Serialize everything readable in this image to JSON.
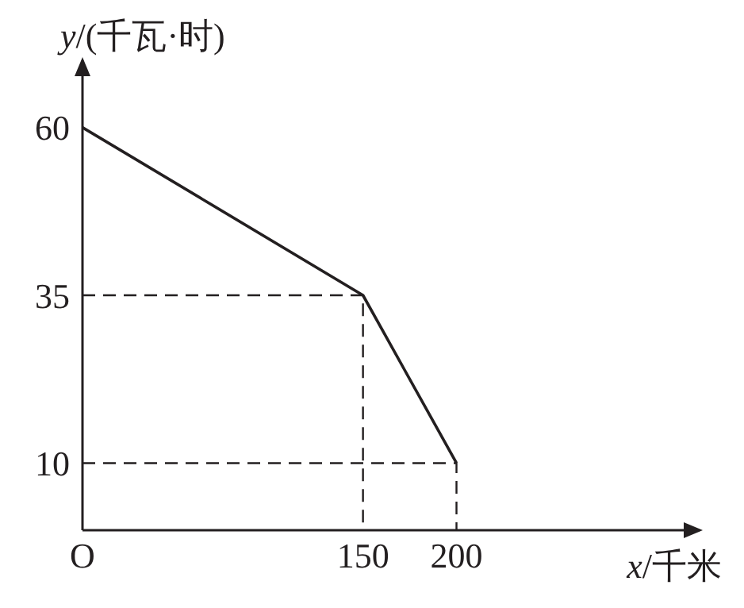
{
  "chart_data": {
    "type": "line",
    "xlabel": "x/千米",
    "ylabel": "y/(千瓦·时)",
    "x": [
      0,
      150,
      200
    ],
    "series": [
      {
        "color": "#231f20",
        "values": [
          60,
          35,
          10
        ]
      },
      {
        "color": "#231f20",
        "x": [
          0,
          150,
          150
        ],
        "values": [
          35,
          35,
          0
        ],
        "line_style": "dashed"
      },
      {
        "color": "#231f20",
        "x": [
          0,
          200,
          200
        ],
        "values": [
          10,
          10,
          0
        ],
        "line_style": "dashed"
      }
    ],
    "xlim": [
      0,
      330
    ],
    "ylim": [
      0,
      70
    ],
    "xticks": [
      {
        "value": 0,
        "label": "O"
      },
      150,
      200
    ],
    "yticks": [
      10,
      35,
      60
    ],
    "marker": "none",
    "line_style": "solid"
  }
}
